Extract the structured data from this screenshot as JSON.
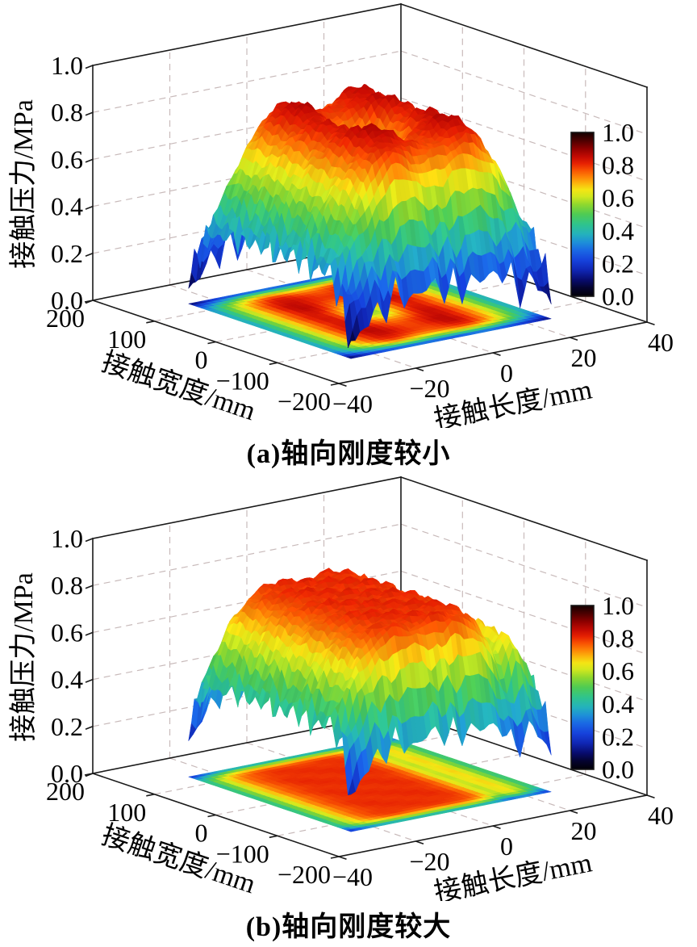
{
  "chart_data": [
    {
      "type": "surface3d",
      "caption": "(a)轴向刚度较小",
      "xlabel": "接触长度/mm",
      "ylabel": "接触宽度/mm",
      "zlabel": "接触压力/MPa",
      "xlim": [
        -40,
        40
      ],
      "ylim": [
        200,
        -200
      ],
      "zlim": [
        0,
        1
      ],
      "xtick_values": [
        -40,
        -20,
        0,
        20,
        40
      ],
      "xtick_labels": [
        "−40",
        "−20",
        "0",
        "20",
        "40"
      ],
      "ytick_values": [
        200,
        100,
        0,
        -100,
        -200
      ],
      "ytick_labels": [
        "200",
        "100",
        "0",
        "−100",
        "−200"
      ],
      "ztick_values": [
        0,
        0.2,
        0.4,
        0.6,
        0.8,
        1
      ],
      "ztick_labels": [
        "0.0",
        "0.2",
        "0.4",
        "0.6",
        "0.8",
        "1.0"
      ],
      "grid_dashed": true,
      "colorbar": {
        "tick_values": [
          1,
          0.8,
          0.6,
          0.4,
          0.2,
          0
        ],
        "tick_labels": [
          "1.0",
          "0.8",
          "0.6",
          "0.4",
          "0.2",
          "0.0"
        ]
      },
      "surface": {
        "x_domain": [
          -26,
          26
        ],
        "y_domain": [
          -132,
          132
        ],
        "peak_pressure_mpa": 0.86,
        "saddle_pressure_mpa": 0.56,
        "edge_pressure_mpa": 0.2,
        "length_profile": {
          "x": [
            -26,
            -22,
            -18,
            -14,
            -11,
            -8,
            -4,
            0,
            4,
            8,
            11,
            14,
            18,
            22,
            26
          ],
          "pressure": [
            0.35,
            0.52,
            0.68,
            0.79,
            0.85,
            0.86,
            0.82,
            0.8,
            0.82,
            0.86,
            0.85,
            0.79,
            0.68,
            0.52,
            0.36
          ]
        },
        "width_profile": {
          "y": [
            -132,
            -127,
            -118,
            -108,
            -96,
            -78,
            -52,
            0,
            52,
            78,
            96,
            108,
            118,
            127,
            132
          ],
          "factor": [
            0.27,
            0.38,
            0.58,
            0.8,
            0.93,
            0.985,
            1,
            1,
            1,
            0.985,
            0.93,
            0.8,
            0.58,
            0.38,
            0.27
          ]
        },
        "center_dip": {
          "x0": 0,
          "y0": 0,
          "depth": 0.24,
          "sigma_x": 5,
          "sigma_y": 26
        },
        "edge_jaggedness": 0.1
      }
    },
    {
      "type": "surface3d",
      "caption": "(b)轴向刚度较大",
      "xlabel": "接触长度/mm",
      "ylabel": "接触宽度/mm",
      "zlabel": "接触压力/MPa",
      "xlim": [
        -40,
        40
      ],
      "ylim": [
        200,
        -200
      ],
      "zlim": [
        0,
        1
      ],
      "xtick_values": [
        -40,
        -20,
        0,
        20,
        40
      ],
      "xtick_labels": [
        "−40",
        "−20",
        "0",
        "20",
        "40"
      ],
      "ytick_values": [
        200,
        100,
        0,
        -100,
        -200
      ],
      "ytick_labels": [
        "200",
        "100",
        "0",
        "−100",
        "−200"
      ],
      "ztick_values": [
        0,
        0.2,
        0.4,
        0.6,
        0.8,
        1
      ],
      "ztick_labels": [
        "0.0",
        "0.2",
        "0.4",
        "0.6",
        "0.8",
        "1.0"
      ],
      "grid_dashed": true,
      "colorbar": {
        "tick_values": [
          1,
          0.8,
          0.6,
          0.4,
          0.2,
          0
        ],
        "tick_labels": [
          "1.0",
          "0.8",
          "0.6",
          "0.4",
          "0.2",
          "0.0"
        ]
      },
      "surface": {
        "x_domain": [
          -26,
          26
        ],
        "y_domain": [
          -132,
          132
        ],
        "plateau_pressure_mpa": 0.8,
        "dip_pressure_mpa": 0.58,
        "edge_pressure_mpa": 0.25,
        "length_profile": {
          "x": [
            -26,
            -22,
            -18,
            -14,
            -10,
            -6,
            0,
            6,
            10,
            13,
            16,
            19,
            22,
            26
          ],
          "pressure": [
            0.42,
            0.6,
            0.73,
            0.78,
            0.8,
            0.8,
            0.8,
            0.8,
            0.78,
            0.71,
            0.58,
            0.67,
            0.6,
            0.44
          ]
        },
        "width_profile": {
          "y": [
            -132,
            -127,
            -120,
            -111,
            -101,
            -70,
            0,
            70,
            101,
            111,
            120,
            127,
            132
          ],
          "factor": [
            0.42,
            0.55,
            0.74,
            0.91,
            0.985,
            1,
            1,
            1,
            0.985,
            0.91,
            0.74,
            0.55,
            0.42
          ]
        },
        "center_dip": {
          "x0": 0,
          "y0": 0,
          "depth": 0,
          "sigma_x": 5,
          "sigma_y": 26
        },
        "edge_jaggedness": 0.08
      }
    }
  ],
  "colormap": {
    "description": "jet-style colormap with black at both ends",
    "stops": [
      [
        0.0,
        2,
        0,
        6
      ],
      [
        0.05,
        4,
        3,
        46
      ],
      [
        0.1,
        8,
        12,
        110
      ],
      [
        0.16,
        16,
        38,
        180
      ],
      [
        0.22,
        22,
        66,
        220
      ],
      [
        0.28,
        26,
        104,
        228
      ],
      [
        0.33,
        30,
        144,
        216
      ],
      [
        0.38,
        36,
        178,
        188
      ],
      [
        0.44,
        47,
        196,
        140
      ],
      [
        0.5,
        78,
        203,
        84
      ],
      [
        0.56,
        143,
        216,
        46
      ],
      [
        0.61,
        210,
        232,
        30
      ],
      [
        0.65,
        244,
        229,
        20
      ],
      [
        0.69,
        252,
        180,
        12
      ],
      [
        0.73,
        253,
        130,
        6
      ],
      [
        0.77,
        248,
        81,
        2
      ],
      [
        0.81,
        231,
        34,
        2
      ],
      [
        0.85,
        197,
        11,
        3
      ],
      [
        0.9,
        143,
        0,
        0
      ],
      [
        0.95,
        77,
        0,
        0
      ],
      [
        1.0,
        18,
        0,
        0
      ]
    ]
  }
}
